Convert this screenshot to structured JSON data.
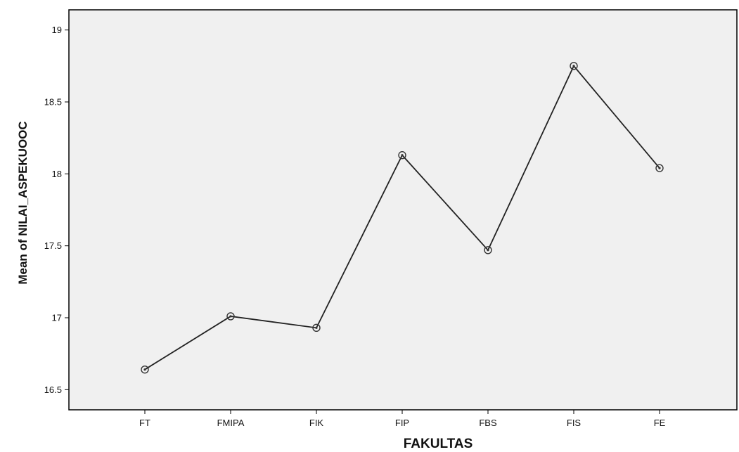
{
  "chart_data": {
    "type": "line",
    "title": "",
    "xlabel": "FAKULTAS",
    "ylabel": "Mean of NILAI_ASPEKUOOC",
    "categories": [
      "FT",
      "FMIPA",
      "FIK",
      "FIP",
      "FBS",
      "FIS",
      "FE"
    ],
    "series": [
      {
        "values": [
          16.64,
          17.01,
          16.93,
          18.13,
          17.47,
          18.75,
          18.04
        ]
      }
    ],
    "ylim": [
      16.36,
      19.14
    ],
    "yticks": [
      "16.5",
      "17",
      "17.5",
      "18",
      "18.5",
      "19"
    ],
    "grid": false,
    "legend": "none",
    "markers": "hollow circle",
    "colors": {
      "plot_background": "#f0f0f0",
      "line": "#222222",
      "frame": "#000000"
    }
  }
}
